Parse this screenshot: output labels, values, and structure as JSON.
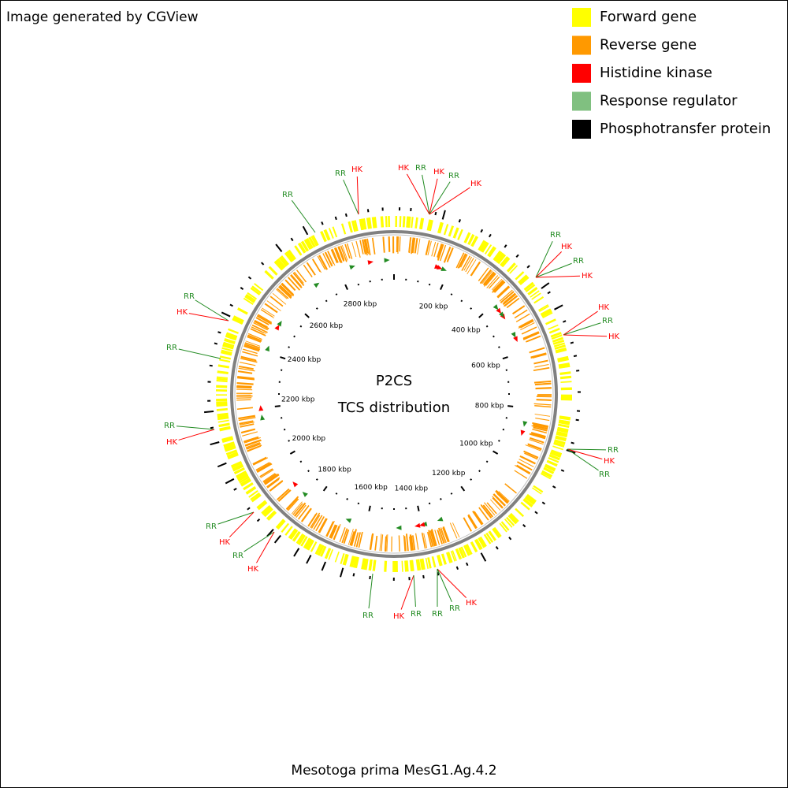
{
  "header": {
    "title": "Image generated by CGView"
  },
  "legend": [
    "Forward gene",
    "Reverse gene",
    "Histidine kinase",
    "Response regulator",
    "Phosphotransfer protein"
  ],
  "center": {
    "title": "P2CS",
    "subtitle": "TCS distribution"
  },
  "footer": "Mesotoga prima MesG1.Ag.4.2",
  "ruler": [
    "200 kbp",
    "400 kbp",
    "600 kbp",
    "800 kbp",
    "1000 kbp",
    "1200 kbp",
    "1400 kbp",
    "1600 kbp",
    "1800 kbp",
    "2000 kbp",
    "2200 kbp",
    "2400 kbp",
    "2600 kbp",
    "2800 kbp"
  ],
  "labels": [
    "RR",
    "HK",
    "RR",
    "HK",
    "RR",
    "HK",
    "RR",
    "HK",
    "RR",
    "HK",
    "RR",
    "HK",
    "HK",
    "RR",
    "HK",
    "RR",
    "HK",
    "RR",
    "HK",
    "RR",
    "RR",
    "HK",
    "RR",
    "RR",
    "RR",
    "HK",
    "RR",
    "HK",
    "RR",
    "HK",
    "RR",
    "RR",
    "HK"
  ]
}
